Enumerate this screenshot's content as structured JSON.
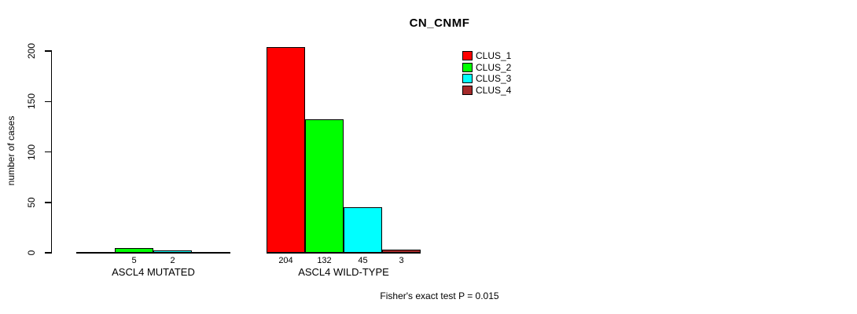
{
  "title": "CN_CNMF",
  "y_axis": {
    "label": "number of cases",
    "ticks": [
      0,
      50,
      100,
      150,
      200
    ]
  },
  "x_groups": [
    "ASCL4 MUTATED",
    "ASCL4 WILD-TYPE"
  ],
  "legend": {
    "items": [
      {
        "label": "CLUS_1",
        "color": "#FF0000"
      },
      {
        "label": "CLUS_2",
        "color": "#00FF00"
      },
      {
        "label": "CLUS_3",
        "color": "#00FFFF"
      },
      {
        "label": "CLUS_4",
        "color": "#A52A2A"
      }
    ]
  },
  "footer": "Fisher's exact test P = 0.015",
  "chart_data": {
    "type": "bar",
    "title": "CN_CNMF",
    "xlabel": "",
    "ylabel": "number of cases",
    "ylim": [
      0,
      200
    ],
    "yticks": [
      0,
      50,
      100,
      150,
      200
    ],
    "grid": false,
    "legend_position": "top-right",
    "categories": [
      "ASCL4 MUTATED",
      "ASCL4 WILD-TYPE"
    ],
    "series": [
      {
        "name": "CLUS_1",
        "color": "#FF0000",
        "values": [
          0,
          204
        ]
      },
      {
        "name": "CLUS_2",
        "color": "#00FF00",
        "values": [
          5,
          132
        ]
      },
      {
        "name": "CLUS_3",
        "color": "#00FFFF",
        "values": [
          2,
          45
        ]
      },
      {
        "name": "CLUS_4",
        "color": "#A52A2A",
        "values": [
          0,
          3
        ]
      }
    ],
    "bar_value_labels": [
      [
        "",
        "5",
        "2",
        ""
      ],
      [
        "204",
        "132",
        "45",
        "3"
      ]
    ],
    "annotation": "Fisher's exact test P = 0.015"
  }
}
